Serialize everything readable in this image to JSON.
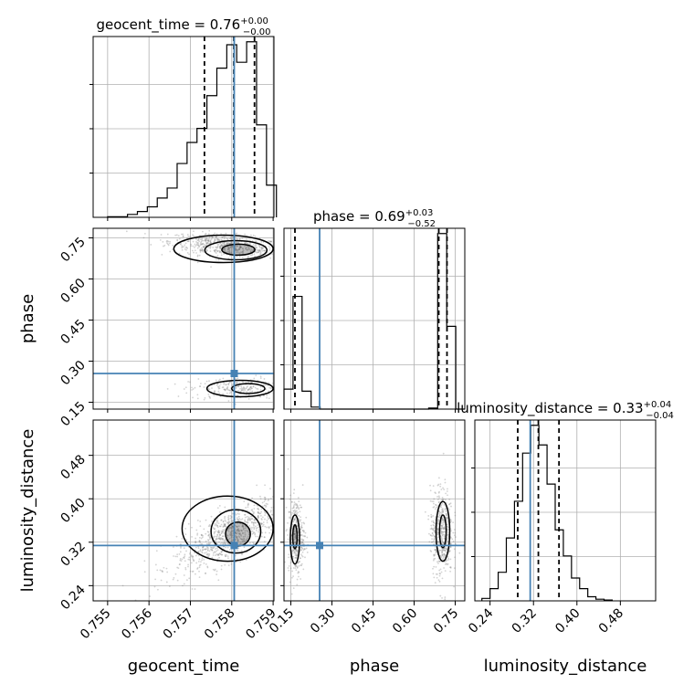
{
  "figure_title": "",
  "colors": {
    "truth": "#4682b4",
    "hist": "#000000",
    "grid": "#b0b0b0",
    "points": "#808080"
  },
  "chart_data": {
    "type": "corner",
    "parameters": [
      "geocent_time",
      "phase",
      "luminosity_distance"
    ],
    "truths": {
      "geocent_time": 0.75806,
      "phase": 0.255,
      "luminosity_distance": 0.314
    },
    "axes": {
      "geocent_time": {
        "label": "geocent_time",
        "range": [
          0.75465,
          0.75902
        ],
        "ticks": [
          0.755,
          0.756,
          0.757,
          0.758,
          0.759
        ],
        "tick_labels": [
          "0.755",
          "0.756",
          "0.757",
          "0.758",
          "0.759"
        ]
      },
      "phase": {
        "label": "phase",
        "range": [
          0.125,
          0.785
        ],
        "ticks": [
          0.15,
          0.3,
          0.45,
          0.6,
          0.75
        ],
        "tick_labels": [
          "0.15",
          "0.30",
          "0.45",
          "0.60",
          "0.75"
        ]
      },
      "luminosity_distance": {
        "label": "luminosity_distance",
        "range": [
          0.212,
          0.545
        ],
        "ticks": [
          0.24,
          0.32,
          0.4,
          0.48
        ],
        "tick_labels": [
          "0.24",
          "0.32",
          "0.40",
          "0.48"
        ]
      }
    },
    "marginals": [
      {
        "param": "geocent_time",
        "title_main": "geocent_time = 0.76",
        "title_sup": "+0.00",
        "title_sub": "−0.00",
        "quantiles": [
          0.75734,
          0.75805,
          0.75855
        ],
        "bin_edges": [
          0.755,
          0.75524,
          0.75548,
          0.75572,
          0.75596,
          0.7562,
          0.75644,
          0.75668,
          0.75692,
          0.75716,
          0.7574,
          0.75764,
          0.75788,
          0.75812,
          0.75836,
          0.7586,
          0.75884,
          0.75908
        ],
        "counts": [
          1,
          1,
          5,
          10,
          18,
          33,
          50,
          92,
          128,
          152,
          208,
          255,
          295,
          265,
          300,
          158,
          55
        ]
      },
      {
        "param": "phase",
        "title_main": "phase = 0.69",
        "title_sup": "+0.03",
        "title_sub": "−0.52",
        "quantiles": [
          0.165,
          0.69,
          0.72
        ],
        "bin_edges": [
          0.125,
          0.158,
          0.191,
          0.224,
          0.257,
          0.29,
          0.323,
          0.356,
          0.389,
          0.422,
          0.455,
          0.488,
          0.521,
          0.554,
          0.587,
          0.62,
          0.653,
          0.686,
          0.719,
          0.752,
          0.785
        ],
        "counts": [
          20,
          113,
          18,
          2,
          0,
          0,
          0,
          0,
          0,
          0,
          0,
          0,
          0,
          0,
          0,
          0,
          1,
          176,
          83,
          0
        ]
      },
      {
        "param": "luminosity_distance",
        "title_main": "luminosity_distance = 0.33",
        "title_sup": "+0.04",
        "title_sub": "−0.04",
        "quantiles": [
          0.291,
          0.329,
          0.367
        ],
        "bin_edges": [
          0.225,
          0.24,
          0.255,
          0.27,
          0.285,
          0.3,
          0.315,
          0.33,
          0.345,
          0.36,
          0.375,
          0.39,
          0.405,
          0.42,
          0.435,
          0.45,
          0.465
        ],
        "counts": [
          3,
          15,
          35,
          77,
          122,
          181,
          215,
          191,
          143,
          87,
          55,
          28,
          15,
          5,
          2,
          1
        ]
      }
    ],
    "joints": [
      {
        "x_param": "geocent_time",
        "y_param": "phase",
        "clusters": [
          {
            "cx": 0.7579,
            "cy": 0.72,
            "sx": 0.0007,
            "sy": 0.022,
            "tilt": -0.4,
            "weight": 0.7
          },
          {
            "cx": 0.7582,
            "cy": 0.2,
            "sx": 0.0006,
            "sy": 0.02,
            "tilt": 0.1,
            "weight": 0.3
          }
        ],
        "contours": [
          {
            "cx": 0.75816,
            "cy": 0.707,
            "rx": 0.0004,
            "ry": 0.02
          },
          {
            "cx": 0.7581,
            "cy": 0.705,
            "rx": 0.00075,
            "ry": 0.035
          },
          {
            "cx": 0.7578,
            "cy": 0.71,
            "rx": 0.0012,
            "ry": 0.05
          },
          {
            "cx": 0.7584,
            "cy": 0.2,
            "rx": 0.0004,
            "ry": 0.018
          },
          {
            "cx": 0.7582,
            "cy": 0.2,
            "rx": 0.0008,
            "ry": 0.03
          }
        ]
      },
      {
        "x_param": "geocent_time",
        "y_param": "luminosity_distance",
        "clusters": [
          {
            "cx": 0.758,
            "cy": 0.335,
            "sx": 0.0007,
            "sy": 0.035,
            "tilt": 0.75,
            "weight": 1.0
          }
        ],
        "contours": [
          {
            "cx": 0.75815,
            "cy": 0.335,
            "rx": 0.0003,
            "ry": 0.022
          },
          {
            "cx": 0.7581,
            "cy": 0.34,
            "rx": 0.0006,
            "ry": 0.04
          },
          {
            "cx": 0.7579,
            "cy": 0.345,
            "rx": 0.0011,
            "ry": 0.06
          }
        ]
      },
      {
        "x_param": "phase",
        "y_param": "luminosity_distance",
        "clusters": [
          {
            "cx": 0.17,
            "cy": 0.33,
            "sx": 0.015,
            "sy": 0.035,
            "tilt": 0,
            "weight": 0.4
          },
          {
            "cx": 0.7,
            "cy": 0.34,
            "sx": 0.02,
            "sy": 0.04,
            "tilt": 0,
            "weight": 0.6
          }
        ],
        "contours": [
          {
            "cx": 0.165,
            "cy": 0.33,
            "rx": 0.008,
            "ry": 0.022
          },
          {
            "cx": 0.165,
            "cy": 0.325,
            "rx": 0.017,
            "ry": 0.045
          },
          {
            "cx": 0.705,
            "cy": 0.34,
            "rx": 0.012,
            "ry": 0.03
          },
          {
            "cx": 0.705,
            "cy": 0.34,
            "rx": 0.025,
            "ry": 0.055
          }
        ]
      }
    ]
  }
}
